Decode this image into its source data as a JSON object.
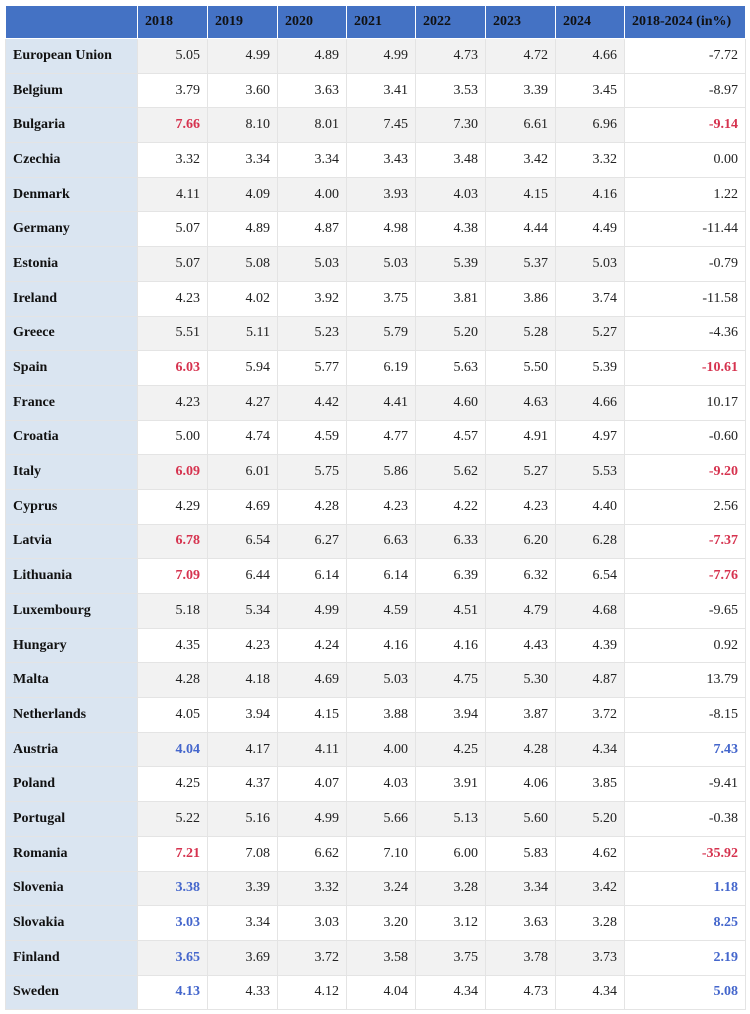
{
  "table": {
    "columns": [
      "2018",
      "2019",
      "2020",
      "2021",
      "2022",
      "2023",
      "2024",
      "2018-2024 (in%)"
    ],
    "header_color": "#4472c4",
    "label_color": "#dae5f1",
    "stripe_color": "#f2f2f2",
    "rows": [
      {
        "label": "European Union",
        "values": [
          "5.05",
          "4.99",
          "4.89",
          "4.99",
          "4.73",
          "4.72",
          "4.66"
        ],
        "change": "-7.72"
      },
      {
        "label": "Belgium",
        "values": [
          "3.79",
          "3.60",
          "3.63",
          "3.41",
          "3.53",
          "3.39",
          "3.45"
        ],
        "change": "-8.97"
      },
      {
        "label": "Bulgaria",
        "values": [
          "7.66",
          "8.10",
          "8.01",
          "7.45",
          "7.30",
          "6.61",
          "6.96"
        ],
        "change": "-9.14",
        "highlight": "#d6334f"
      },
      {
        "label": "Czechia",
        "values": [
          "3.32",
          "3.34",
          "3.34",
          "3.43",
          "3.48",
          "3.42",
          "3.32"
        ],
        "change": "0.00"
      },
      {
        "label": "Denmark",
        "values": [
          "4.11",
          "4.09",
          "4.00",
          "3.93",
          "4.03",
          "4.15",
          "4.16"
        ],
        "change": "1.22"
      },
      {
        "label": "Germany",
        "values": [
          "5.07",
          "4.89",
          "4.87",
          "4.98",
          "4.38",
          "4.44",
          "4.49"
        ],
        "change": "-11.44"
      },
      {
        "label": "Estonia",
        "values": [
          "5.07",
          "5.08",
          "5.03",
          "5.03",
          "5.39",
          "5.37",
          "5.03"
        ],
        "change": "-0.79"
      },
      {
        "label": "Ireland",
        "values": [
          "4.23",
          "4.02",
          "3.92",
          "3.75",
          "3.81",
          "3.86",
          "3.74"
        ],
        "change": "-11.58"
      },
      {
        "label": "Greece",
        "values": [
          "5.51",
          "5.11",
          "5.23",
          "5.79",
          "5.20",
          "5.28",
          "5.27"
        ],
        "change": "-4.36"
      },
      {
        "label": "Spain",
        "values": [
          "6.03",
          "5.94",
          "5.77",
          "6.19",
          "5.63",
          "5.50",
          "5.39"
        ],
        "change": "-10.61",
        "highlight": "#d6334f"
      },
      {
        "label": "France",
        "values": [
          "4.23",
          "4.27",
          "4.42",
          "4.41",
          "4.60",
          "4.63",
          "4.66"
        ],
        "change": "10.17"
      },
      {
        "label": "Croatia",
        "values": [
          "5.00",
          "4.74",
          "4.59",
          "4.77",
          "4.57",
          "4.91",
          "4.97"
        ],
        "change": "-0.60"
      },
      {
        "label": "Italy",
        "values": [
          "6.09",
          "6.01",
          "5.75",
          "5.86",
          "5.62",
          "5.27",
          "5.53"
        ],
        "change": "-9.20",
        "highlight": "#d6334f"
      },
      {
        "label": "Cyprus",
        "values": [
          "4.29",
          "4.69",
          "4.28",
          "4.23",
          "4.22",
          "4.23",
          "4.40"
        ],
        "change": "2.56"
      },
      {
        "label": "Latvia",
        "values": [
          "6.78",
          "6.54",
          "6.27",
          "6.63",
          "6.33",
          "6.20",
          "6.28"
        ],
        "change": "-7.37",
        "highlight": "#d6334f"
      },
      {
        "label": "Lithuania",
        "values": [
          "7.09",
          "6.44",
          "6.14",
          "6.14",
          "6.39",
          "6.32",
          "6.54"
        ],
        "change": "-7.76",
        "highlight": "#d6334f"
      },
      {
        "label": "Luxembourg",
        "values": [
          "5.18",
          "5.34",
          "4.99",
          "4.59",
          "4.51",
          "4.79",
          "4.68"
        ],
        "change": "-9.65"
      },
      {
        "label": "Hungary",
        "values": [
          "4.35",
          "4.23",
          "4.24",
          "4.16",
          "4.16",
          "4.43",
          "4.39"
        ],
        "change": "0.92"
      },
      {
        "label": "Malta",
        "values": [
          "4.28",
          "4.18",
          "4.69",
          "5.03",
          "4.75",
          "5.30",
          "4.87"
        ],
        "change": "13.79"
      },
      {
        "label": "Netherlands",
        "values": [
          "4.05",
          "3.94",
          "4.15",
          "3.88",
          "3.94",
          "3.87",
          "3.72"
        ],
        "change": "-8.15"
      },
      {
        "label": "Austria",
        "values": [
          "4.04",
          "4.17",
          "4.11",
          "4.00",
          "4.25",
          "4.28",
          "4.34"
        ],
        "change": "7.43",
        "highlight": "#4466cc"
      },
      {
        "label": "Poland",
        "values": [
          "4.25",
          "4.37",
          "4.07",
          "4.03",
          "3.91",
          "4.06",
          "3.85"
        ],
        "change": "-9.41"
      },
      {
        "label": "Portugal",
        "values": [
          "5.22",
          "5.16",
          "4.99",
          "5.66",
          "5.13",
          "5.60",
          "5.20"
        ],
        "change": "-0.38"
      },
      {
        "label": "Romania",
        "values": [
          "7.21",
          "7.08",
          "6.62",
          "7.10",
          "6.00",
          "5.83",
          "4.62"
        ],
        "change": "-35.92",
        "highlight": "#d6334f"
      },
      {
        "label": "Slovenia",
        "values": [
          "3.38",
          "3.39",
          "3.32",
          "3.24",
          "3.28",
          "3.34",
          "3.42"
        ],
        "change": "1.18",
        "highlight": "#4466cc"
      },
      {
        "label": "Slovakia",
        "values": [
          "3.03",
          "3.34",
          "3.03",
          "3.20",
          "3.12",
          "3.63",
          "3.28"
        ],
        "change": "8.25",
        "highlight": "#4466cc"
      },
      {
        "label": "Finland",
        "values": [
          "3.65",
          "3.69",
          "3.72",
          "3.58",
          "3.75",
          "3.78",
          "3.73"
        ],
        "change": "2.19",
        "highlight": "#4466cc"
      },
      {
        "label": "Sweden",
        "values": [
          "4.13",
          "4.33",
          "4.12",
          "4.04",
          "4.34",
          "4.73",
          "4.34"
        ],
        "change": "5.08",
        "highlight": "#4466cc"
      }
    ]
  }
}
